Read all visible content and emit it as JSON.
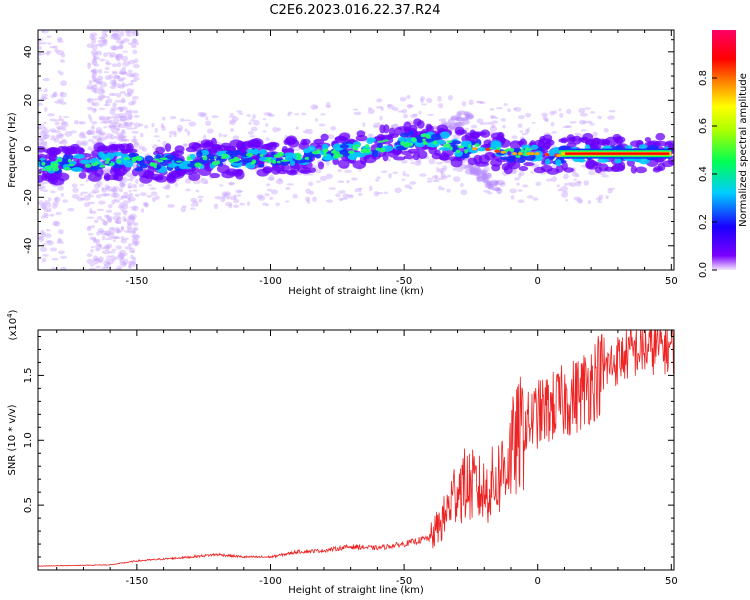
{
  "title": "C2E6.2023.016.22.37.R24",
  "colors": {
    "line": "#ee2222",
    "blob": "#7a00ff"
  },
  "chart_data": [
    {
      "type": "heatmap",
      "xlabel": "Height of straight line (km)",
      "ylabel": "Frequency (Hz)",
      "xlim": [
        -187,
        51
      ],
      "ylim": [
        -50,
        49
      ],
      "xticks": [
        -150,
        -100,
        -50,
        0,
        50
      ],
      "yticks": [
        -40,
        -20,
        0,
        20,
        40
      ],
      "colorbar": {
        "label": "Normalized spectral amplitude",
        "ticks": [
          0.0,
          0.2,
          0.4,
          0.6,
          0.8
        ],
        "tick_labels": [
          "0.0",
          "0.2",
          "0.4",
          "0.6",
          "0.8"
        ],
        "range": [
          0,
          1
        ],
        "stops": [
          "#f4e6ff",
          "#7a00ff",
          "#1a00ff",
          "#00ccff",
          "#00ff55",
          "#aaff00",
          "#ffff00",
          "#ff8800",
          "#ff0000",
          "#ff0066"
        ]
      },
      "ridge": {
        "x": [
          -185,
          -160,
          -140,
          -120,
          -100,
          -80,
          -60,
          -45,
          -35,
          -28,
          -20,
          -10,
          0,
          10,
          20,
          50
        ],
        "frequency": [
          -7,
          -5,
          -6,
          -4,
          -4,
          -2,
          1,
          4,
          3,
          0,
          0,
          -2,
          -2,
          -3,
          -2,
          -2
        ]
      }
    },
    {
      "type": "line",
      "xlabel": "Height of straight line (km)",
      "ylabel": "SNR (10 * v/v)",
      "y_multiplier": "(x10",
      "y_multiplier_exp": "4",
      "xlim": [
        -187,
        51
      ],
      "ylim": [
        0,
        1.85
      ],
      "xticks": [
        -150,
        -100,
        -50,
        0,
        50
      ],
      "yticks": [
        0.5,
        1.0,
        1.5
      ],
      "ytick_labels": [
        "0.5",
        "1.0",
        "1.5"
      ],
      "series": [
        {
          "trend_x": [
            -187,
            -160,
            -150,
            -130,
            -120,
            -110,
            -100,
            -90,
            -80,
            -70,
            -60,
            -50,
            -40,
            -35,
            -30,
            -25,
            -20,
            -15,
            -10,
            -5,
            0,
            5,
            10,
            15,
            20,
            25,
            30,
            35,
            40,
            45,
            51
          ],
          "trend_y": [
            0.03,
            0.04,
            0.07,
            0.1,
            0.12,
            0.1,
            0.1,
            0.14,
            0.15,
            0.18,
            0.17,
            0.2,
            0.25,
            0.4,
            0.65,
            0.65,
            0.6,
            0.7,
            0.9,
            1.1,
            1.2,
            1.25,
            1.3,
            1.35,
            1.45,
            1.55,
            1.62,
            1.68,
            1.7,
            1.72,
            1.72
          ]
        }
      ]
    }
  ]
}
